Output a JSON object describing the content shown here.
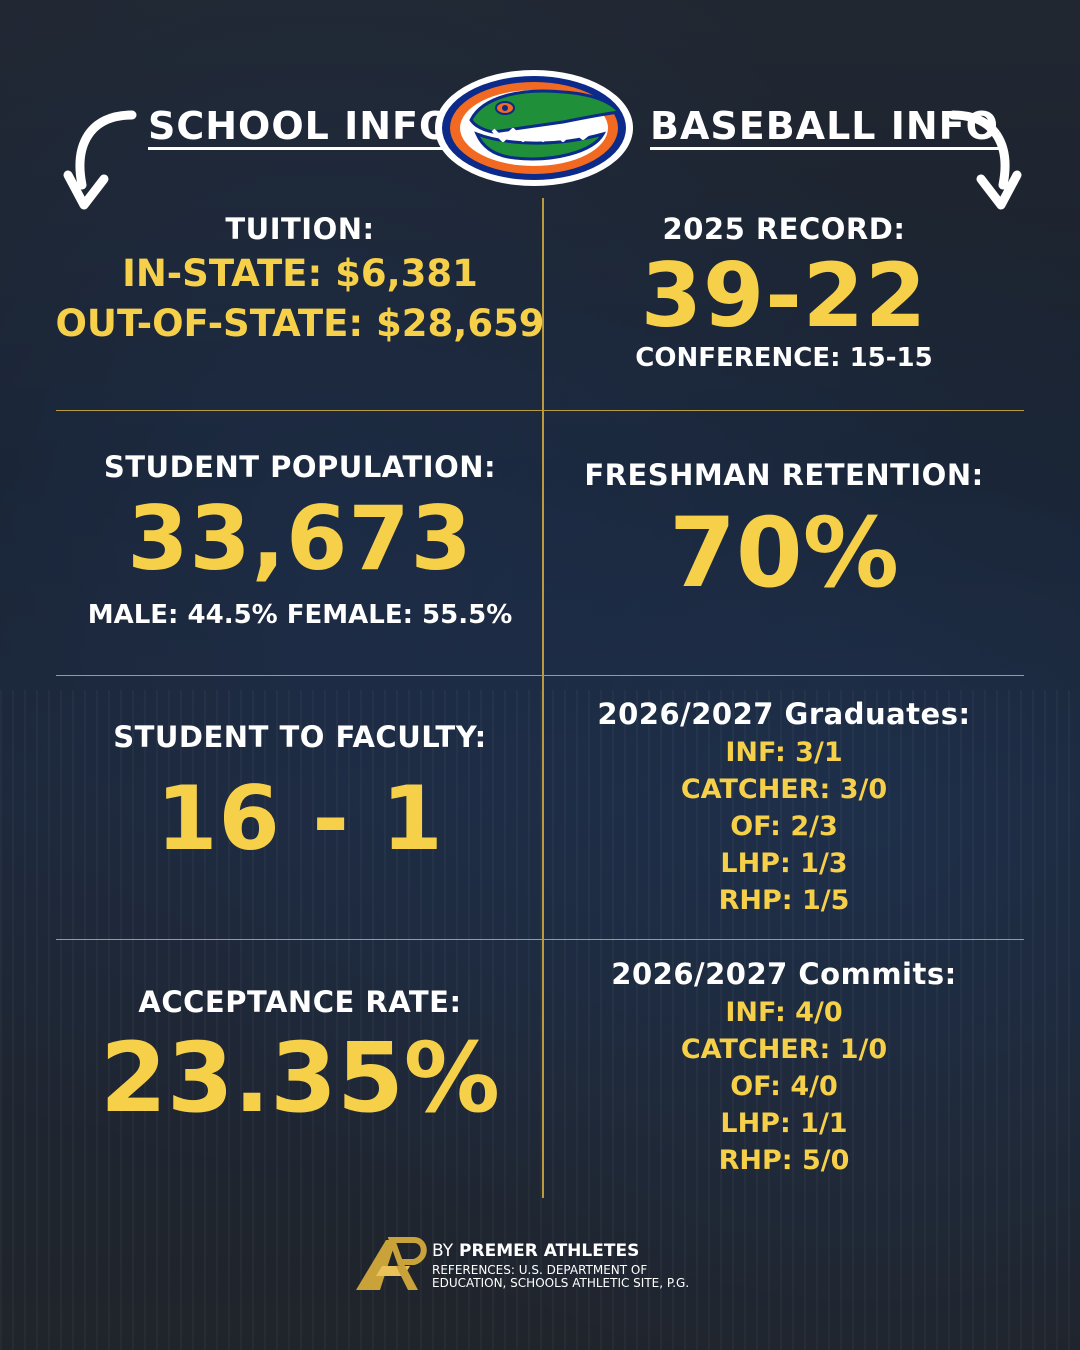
{
  "headers": {
    "school": "SCHOOL INFO",
    "baseball": "BASEBALL INFO"
  },
  "school": {
    "tuition": {
      "label": "TUITION:",
      "in_state": "IN-STATE: $6,381",
      "out_state": "OUT-OF-STATE: $28,659"
    },
    "population": {
      "label": "STUDENT POPULATION:",
      "value": "33,673",
      "split": "MALE: 44.5% FEMALE: 55.5%"
    },
    "faculty": {
      "label": "STUDENT TO FACULTY:",
      "value": "16 - 1"
    },
    "acceptance": {
      "label": "ACCEPTANCE RATE:",
      "value": "23.35%"
    }
  },
  "baseball": {
    "record": {
      "label": "2025 RECORD:",
      "value": "39-22",
      "conference": "CONFERENCE: 15-15"
    },
    "retention": {
      "label": "FRESHMAN RETENTION:",
      "value": "70%"
    },
    "graduates": {
      "label": "2026/2027 Graduates:",
      "items": [
        "INF: 3/1",
        "CATCHER: 3/0",
        "OF: 2/3",
        "LHP: 1/3",
        "RHP: 1/5"
      ]
    },
    "commits": {
      "label": "2026/2027 Commits:",
      "items": [
        "INF: 4/0",
        "CATCHER: 1/0",
        "OF: 4/0",
        "LHP: 1/1",
        "RHP: 5/0"
      ]
    }
  },
  "footer": {
    "by": "BY",
    "brand": "PREMER ATHLETES",
    "references_1": "REFERENCES: U.S. DEPARTMENT OF",
    "references_2": "EDUCATION, SCHOOLS ATHLETIC SITE, P.G."
  },
  "colors": {
    "accent": "#f7d04a",
    "divider": "#b99a3e",
    "logo_orange": "#f26a21",
    "logo_blue": "#0b2a8a",
    "logo_green": "#1f8f3a"
  }
}
